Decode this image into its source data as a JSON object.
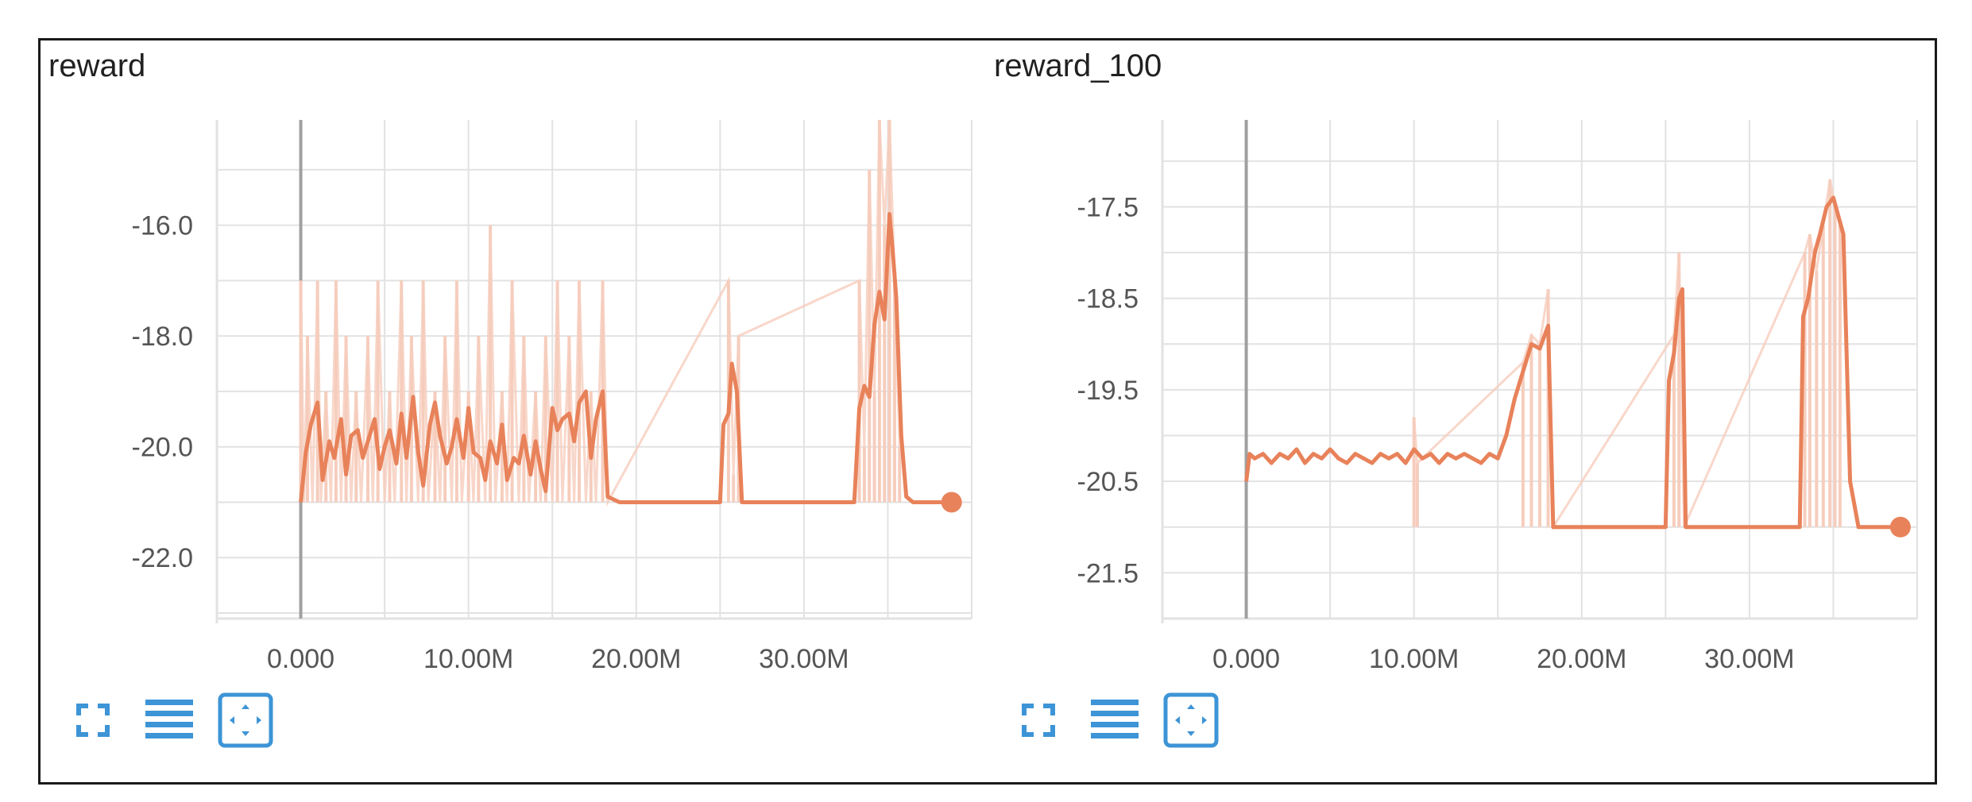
{
  "colors": {
    "line": "#e8825a",
    "raw": "#f6cdbd",
    "grid": "#e2e2e2",
    "axis": "#a0a0a0",
    "icon": "#3d94d6"
  },
  "toolbar_icons": [
    "fullscreen-icon",
    "data-table-icon",
    "fit-domain-icon"
  ],
  "chart_data": [
    {
      "type": "line",
      "title": "reward",
      "x_tick_labels": [
        "0.000",
        "10.00M",
        "20.00M",
        "30.00M"
      ],
      "y_tick_labels": [
        "-16.0",
        "-18.0",
        "-20.0",
        "-22.0"
      ],
      "x_ticks": [
        0,
        10000000,
        20000000,
        30000000
      ],
      "y_ticks": [
        -16,
        -18,
        -20,
        -22
      ],
      "xlim": [
        -5000000,
        40000000
      ],
      "ylim": [
        -23.1,
        -14.1
      ],
      "grid": true,
      "series": [
        {
          "smoothed": {
            "x": [
              0,
              300000,
              600000,
              1000000,
              1300000,
              1700000,
              2000000,
              2400000,
              2700000,
              3000000,
              3400000,
              3700000,
              4000000,
              4400000,
              4700000,
              5000000,
              5300000,
              5700000,
              6000000,
              6300000,
              6700000,
              7000000,
              7300000,
              7700000,
              8000000,
              8300000,
              8700000,
              9000000,
              9300000,
              9700000,
              10000000,
              10300000,
              10700000,
              11000000,
              11300000,
              11700000,
              12000000,
              12300000,
              12700000,
              13000000,
              13300000,
              13700000,
              14000000,
              14300000,
              14600000,
              15000000,
              15300000,
              15600000,
              16000000,
              16300000,
              16600000,
              17000000,
              17300000,
              17600000,
              18000000,
              18300000,
              19000000,
              20000000,
              22000000,
              24000000,
              25000000,
              25200000,
              25500000,
              25700000,
              26000000,
              26300000,
              26600000,
              27000000,
              30000000,
              33000000,
              33300000,
              33600000,
              33900000,
              34200000,
              34500000,
              34800000,
              35100000,
              35300000,
              35500000,
              35800000,
              36100000,
              36500000,
              37000000,
              38000000,
              38800000
            ],
            "y": [
              -21.0,
              -20.1,
              -19.6,
              -19.2,
              -20.6,
              -19.9,
              -20.2,
              -19.5,
              -20.5,
              -19.8,
              -19.7,
              -20.2,
              -19.9,
              -19.5,
              -20.4,
              -20.0,
              -19.7,
              -20.3,
              -19.4,
              -20.2,
              -19.1,
              -20.1,
              -20.7,
              -19.6,
              -19.2,
              -19.8,
              -20.3,
              -20.0,
              -19.5,
              -20.2,
              -19.3,
              -20.1,
              -20.2,
              -20.6,
              -19.9,
              -20.3,
              -19.6,
              -20.6,
              -20.2,
              -20.3,
              -19.8,
              -20.5,
              -19.9,
              -20.4,
              -20.8,
              -19.3,
              -19.7,
              -19.5,
              -19.4,
              -19.9,
              -19.2,
              -19.0,
              -20.2,
              -19.5,
              -19.0,
              -20.9,
              -21.0,
              -21.0,
              -21.0,
              -21.0,
              -21.0,
              -19.6,
              -19.4,
              -18.5,
              -19.0,
              -21.0,
              -21.0,
              -21.0,
              -21.0,
              -21.0,
              -19.3,
              -18.9,
              -19.1,
              -17.8,
              -17.2,
              -17.7,
              -15.8,
              -16.5,
              -17.3,
              -19.8,
              -20.9,
              -21.0,
              -21.0,
              -21.0,
              -21.0
            ]
          },
          "raw": {
            "x": [
              0,
              200000,
              400000,
              700000,
              1000000,
              1200000,
              1500000,
              1800000,
              2100000,
              2400000,
              2700000,
              3000000,
              3300000,
              3600000,
              4000000,
              4300000,
              4600000,
              5000000,
              5300000,
              5600000,
              6000000,
              6300000,
              6600000,
              7000000,
              7300000,
              7600000,
              8000000,
              8300000,
              8600000,
              9000000,
              9300000,
              9600000,
              10000000,
              10300000,
              10600000,
              11000000,
              11300000,
              11600000,
              12000000,
              12300000,
              12600000,
              13000000,
              13300000,
              13600000,
              14000000,
              14300000,
              14600000,
              15000000,
              15300000,
              15600000,
              16000000,
              16300000,
              16600000,
              17000000,
              17300000,
              17600000,
              18000000,
              18300000,
              25500000,
              25800000,
              26100000,
              33300000,
              33600000,
              33900000,
              34200000,
              34500000,
              34800000,
              35100000,
              35400000,
              35700000
            ],
            "y": [
              -17.0,
              -21.0,
              -18.0,
              -21.0,
              -17.0,
              -21.0,
              -19.0,
              -21.0,
              -17.0,
              -21.0,
              -18.0,
              -21.0,
              -19.0,
              -21.0,
              -18.0,
              -21.0,
              -17.0,
              -21.0,
              -19.0,
              -21.0,
              -17.0,
              -21.0,
              -18.0,
              -21.0,
              -17.0,
              -21.0,
              -19.0,
              -21.0,
              -18.0,
              -21.0,
              -17.0,
              -21.0,
              -19.0,
              -21.0,
              -18.0,
              -21.0,
              -16.0,
              -21.0,
              -19.0,
              -21.0,
              -17.0,
              -21.0,
              -18.0,
              -21.0,
              -19.0,
              -21.0,
              -18.0,
              -21.0,
              -17.0,
              -21.0,
              -18.0,
              -21.0,
              -17.0,
              -21.0,
              -19.0,
              -21.0,
              -17.0,
              -21.0,
              -17.0,
              -20.5,
              -18.0,
              -17.0,
              -20.0,
              -15.0,
              -19.0,
              -14.1,
              -16.0,
              -14.1,
              -17.0,
              -20.0
            ]
          }
        }
      ]
    },
    {
      "type": "line",
      "title": "reward_100",
      "x_tick_labels": [
        "0.000",
        "10.00M",
        "20.00M",
        "30.00M"
      ],
      "y_tick_labels": [
        "-17.5",
        "-18.5",
        "-19.5",
        "-20.5",
        "-21.5"
      ],
      "x_ticks": [
        0,
        10000000,
        20000000,
        30000000
      ],
      "y_ticks": [
        -17.5,
        -18.5,
        -19.5,
        -20.5,
        -21.5
      ],
      "xlim": [
        -5000000,
        40000000
      ],
      "ylim": [
        -22.0,
        -16.55
      ],
      "grid": true,
      "series": [
        {
          "smoothed": {
            "x": [
              0,
              200000,
              500000,
              1000000,
              1500000,
              2000000,
              2500000,
              3000000,
              3500000,
              4000000,
              4500000,
              5000000,
              5500000,
              6000000,
              6500000,
              7000000,
              7500000,
              8000000,
              8500000,
              9000000,
              9500000,
              10000000,
              10500000,
              11000000,
              11500000,
              12000000,
              12500000,
              13000000,
              13500000,
              14000000,
              14500000,
              15000000,
              15500000,
              16000000,
              16500000,
              17000000,
              17500000,
              18000000,
              18300000,
              18600000,
              19000000,
              20000000,
              22000000,
              24000000,
              25000000,
              25200000,
              25500000,
              25800000,
              26000000,
              26200000,
              26500000,
              27000000,
              30000000,
              33000000,
              33200000,
              33500000,
              33900000,
              34200000,
              34600000,
              35000000,
              35300000,
              35600000,
              36000000,
              36500000,
              37000000,
              38000000,
              39000000
            ],
            "y": [
              -20.5,
              -20.2,
              -20.25,
              -20.2,
              -20.3,
              -20.2,
              -20.25,
              -20.15,
              -20.3,
              -20.2,
              -20.25,
              -20.15,
              -20.25,
              -20.3,
              -20.2,
              -20.25,
              -20.3,
              -20.2,
              -20.25,
              -20.2,
              -20.3,
              -20.15,
              -20.25,
              -20.2,
              -20.3,
              -20.2,
              -20.25,
              -20.2,
              -20.25,
              -20.3,
              -20.2,
              -20.25,
              -20.0,
              -19.6,
              -19.3,
              -19.0,
              -19.05,
              -18.8,
              -21.0,
              -21.0,
              -21.0,
              -21.0,
              -21.0,
              -21.0,
              -21.0,
              -19.4,
              -19.1,
              -18.5,
              -18.4,
              -21.0,
              -21.0,
              -21.0,
              -21.0,
              -21.0,
              -18.7,
              -18.5,
              -18.0,
              -17.8,
              -17.5,
              -17.4,
              -17.6,
              -17.8,
              -20.5,
              -21.0,
              -21.0,
              -21.0,
              -21.0
            ]
          },
          "raw": {
            "x": [
              10000000,
              10200000,
              16500000,
              17000000,
              17500000,
              18000000,
              18300000,
              25500000,
              25800000,
              26100000,
              33300000,
              33600000,
              34000000,
              34400000,
              34800000,
              35100000,
              35400000
            ],
            "y": [
              -19.8,
              -20.3,
              -19.2,
              -18.9,
              -19.0,
              -18.4,
              -21.0,
              -18.9,
              -18.0,
              -21.0,
              -18.0,
              -17.8,
              -18.2,
              -17.7,
              -17.2,
              -17.5,
              -17.7
            ]
          }
        }
      ]
    }
  ]
}
